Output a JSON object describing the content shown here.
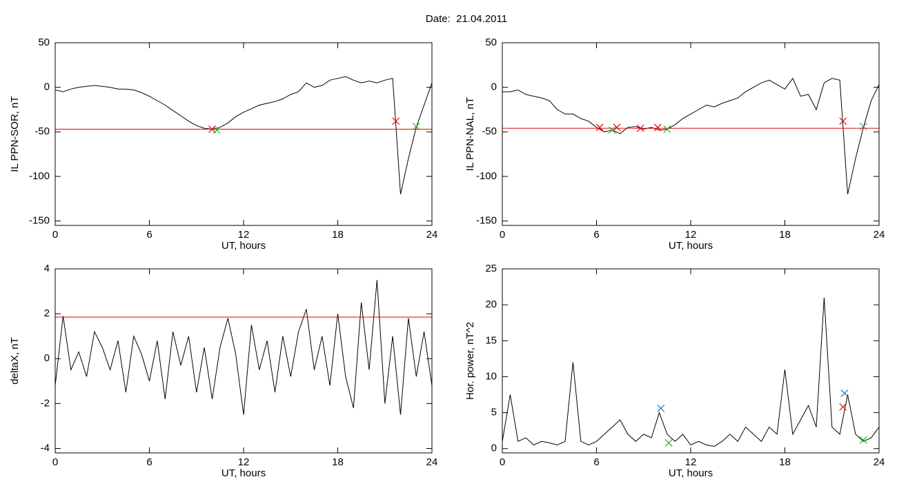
{
  "title": "Date:  21.04.2011",
  "chart_data": [
    {
      "type": "line",
      "x_label": "UT, hours",
      "y_label": "IL PPN-SOR, nT",
      "xlim": [
        0,
        24
      ],
      "xticks": [
        0,
        6,
        12,
        18,
        24
      ],
      "ylim": [
        -155,
        50
      ],
      "yticks": [
        -150,
        -100,
        -50,
        0,
        50
      ],
      "threshold": -47,
      "threshold_color": "#e00000",
      "x": [
        0,
        0.5,
        1,
        1.5,
        2,
        2.5,
        3,
        3.5,
        4,
        4.5,
        5,
        5.5,
        6,
        6.5,
        7,
        7.5,
        8,
        8.5,
        9,
        9.5,
        10,
        10.5,
        11,
        11.5,
        12,
        12.5,
        13,
        13.5,
        14,
        14.5,
        15,
        15.5,
        16,
        16.5,
        17,
        17.5,
        18,
        18.5,
        19,
        19.5,
        20,
        20.5,
        21,
        21.5,
        22,
        22.5,
        23,
        23.5,
        24
      ],
      "series": [
        {
          "color": "#000000",
          "values": [
            -3,
            -5,
            -2,
            0,
            1,
            2,
            1,
            0,
            -2,
            -2,
            -3,
            -6,
            -10,
            -15,
            -20,
            -26,
            -32,
            -38,
            -43,
            -46,
            -47,
            -45,
            -40,
            -33,
            -28,
            -24,
            -20,
            -18,
            -16,
            -13,
            -8,
            -5,
            5,
            0,
            2,
            8,
            10,
            12,
            8,
            5,
            7,
            5,
            8,
            10,
            -120,
            -80,
            -45,
            -20,
            5
          ]
        }
      ],
      "markers": [
        {
          "color": "#e00000",
          "x": [
            10,
            21.7
          ],
          "values": [
            -47,
            -38
          ]
        },
        {
          "color": "#20b020",
          "x": [
            10.3,
            23
          ],
          "values": [
            -48,
            -44
          ]
        }
      ]
    },
    {
      "type": "line",
      "x_label": "UT, hours",
      "y_label": "IL PPN-NAL, nT",
      "xlim": [
        0,
        24
      ],
      "xticks": [
        0,
        6,
        12,
        18,
        24
      ],
      "ylim": [
        -155,
        50
      ],
      "yticks": [
        -150,
        -100,
        -50,
        0,
        50
      ],
      "threshold": -46,
      "threshold_color": "#e00000",
      "x": [
        0,
        0.5,
        1,
        1.5,
        2,
        2.5,
        3,
        3.5,
        4,
        4.5,
        5,
        5.5,
        6,
        6.5,
        7,
        7.5,
        8,
        8.5,
        9,
        9.5,
        10,
        10.5,
        11,
        11.5,
        12,
        12.5,
        13,
        13.5,
        14,
        14.5,
        15,
        15.5,
        16,
        16.5,
        17,
        17.5,
        18,
        18.5,
        19,
        19.5,
        20,
        20.5,
        21,
        21.5,
        22,
        22.5,
        23,
        23.5,
        24
      ],
      "series": [
        {
          "color": "#000000",
          "values": [
            -5,
            -5,
            -3,
            -8,
            -10,
            -12,
            -15,
            -25,
            -30,
            -30,
            -35,
            -38,
            -45,
            -50,
            -48,
            -52,
            -45,
            -44,
            -47,
            -45,
            -48,
            -47,
            -42,
            -35,
            -30,
            -25,
            -20,
            -22,
            -18,
            -15,
            -12,
            -5,
            0,
            5,
            8,
            3,
            -2,
            10,
            -10,
            -8,
            -25,
            5,
            10,
            8,
            -120,
            -80,
            -45,
            -15,
            3
          ]
        }
      ],
      "markers": [
        {
          "color": "#e00000",
          "x": [
            6.2,
            7.3,
            8.8,
            9.9,
            21.7
          ],
          "values": [
            -45,
            -45,
            -46,
            -45,
            -38
          ]
        },
        {
          "color": "#20b020",
          "x": [
            7,
            10.5,
            23
          ],
          "values": [
            -48,
            -47,
            -44
          ]
        }
      ]
    },
    {
      "type": "line",
      "x_label": "UT, hours",
      "y_label": "deltaX, nT",
      "xlim": [
        0,
        24
      ],
      "xticks": [
        0,
        6,
        12,
        18,
        24
      ],
      "ylim": [
        -4.2,
        4
      ],
      "yticks": [
        -4,
        -2,
        0,
        2,
        4
      ],
      "threshold": 1.85,
      "threshold_color": "#e00000",
      "x": [
        0,
        0.5,
        1,
        1.5,
        2,
        2.5,
        3,
        3.5,
        4,
        4.5,
        5,
        5.5,
        6,
        6.5,
        7,
        7.5,
        8,
        8.5,
        9,
        9.5,
        10,
        10.5,
        11,
        11.5,
        12,
        12.5,
        13,
        13.5,
        14,
        14.5,
        15,
        15.5,
        16,
        16.5,
        17,
        17.5,
        18,
        18.5,
        19,
        19.5,
        20,
        20.5,
        21,
        21.5,
        22,
        22.5,
        23,
        23.5,
        24
      ],
      "series": [
        {
          "color": "#000000",
          "values": [
            -1.2,
            1.9,
            -0.5,
            0.3,
            -0.8,
            1.2,
            0.5,
            -0.5,
            0.8,
            -1.5,
            1.0,
            0.2,
            -1.0,
            0.8,
            -1.8,
            1.2,
            -0.3,
            1.0,
            -1.5,
            0.5,
            -1.8,
            0.5,
            1.8,
            0.2,
            -2.5,
            1.5,
            -0.5,
            0.8,
            -1.5,
            1.0,
            -0.8,
            1.2,
            2.2,
            -0.5,
            1.0,
            -1.2,
            2.0,
            -0.8,
            -2.2,
            2.5,
            -0.5,
            3.5,
            -2.0,
            1.0,
            -2.5,
            1.8,
            -0.8,
            1.2,
            -1.2
          ]
        }
      ],
      "markers": []
    },
    {
      "type": "line",
      "x_label": "UT, hours",
      "y_label": "Hor. power, nT^2",
      "xlim": [
        0,
        24
      ],
      "xticks": [
        0,
        6,
        12,
        18,
        24
      ],
      "ylim": [
        -0.6,
        25
      ],
      "yticks": [
        0,
        5,
        10,
        15,
        20,
        25
      ],
      "threshold": 25,
      "threshold_color": "#e00000",
      "x": [
        0,
        0.5,
        1,
        1.5,
        2,
        2.5,
        3,
        3.5,
        4,
        4.5,
        5,
        5.5,
        6,
        6.5,
        7,
        7.5,
        8,
        8.5,
        9,
        9.5,
        10,
        10.5,
        11,
        11.5,
        12,
        12.5,
        13,
        13.5,
        14,
        14.5,
        15,
        15.5,
        16,
        16.5,
        17,
        17.5,
        18,
        18.5,
        19,
        19.5,
        20,
        20.5,
        21,
        21.5,
        22,
        22.5,
        23,
        23.5,
        24
      ],
      "series": [
        {
          "color": "#000000",
          "values": [
            1,
            7.5,
            1,
            1.5,
            0.5,
            1,
            0.8,
            0.5,
            1,
            12,
            1,
            0.5,
            1,
            2,
            3,
            4,
            2,
            1,
            2,
            1.5,
            5,
            2,
            1,
            2,
            0.5,
            1,
            0.5,
            0.3,
            1,
            2,
            1,
            3,
            2,
            1,
            3,
            2,
            11,
            2,
            4,
            6,
            3,
            21,
            3,
            2,
            7.5,
            2,
            1,
            1.5,
            3
          ]
        }
      ],
      "markers": [
        {
          "color": "#2070d0",
          "x": [
            10.1,
            21.8
          ],
          "values": [
            5.6,
            7.7
          ]
        },
        {
          "color": "#e00000",
          "x": [
            21.7
          ],
          "values": [
            5.8
          ]
        },
        {
          "color": "#20b020",
          "x": [
            10.6,
            23
          ],
          "values": [
            0.8,
            1.2
          ]
        }
      ]
    }
  ]
}
